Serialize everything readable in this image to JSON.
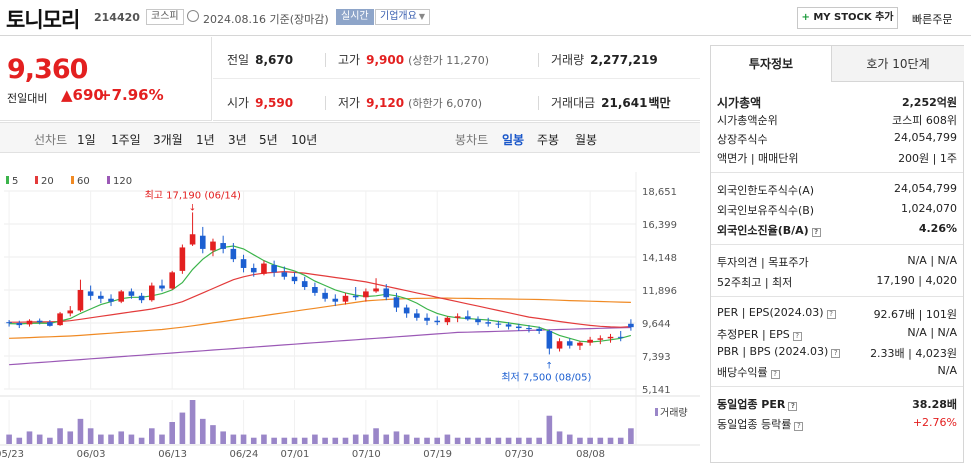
{
  "header": {
    "name": "토니모리",
    "code": "214420",
    "market": "코스피",
    "date": "2024.08.16 기준(장마감)",
    "realtime": "실시간",
    "company_info": "기업개요",
    "mystock_plus": "+",
    "mystock_btn": "MY STOCK 추가",
    "quick_order": "빠른주문"
  },
  "price": {
    "current": "9,360",
    "change_label": "전일대비",
    "change": "▲690",
    "change_pct": "+7.96%"
  },
  "stats": {
    "prev_label": "전일",
    "prev": "8,670",
    "high_label": "고가",
    "high": "9,900",
    "high_sub": "(상한가 11,270)",
    "volume_label": "거래량",
    "volume": "2,277,219",
    "open_label": "시가",
    "open": "9,590",
    "low_label": "저가",
    "low": "9,120",
    "low_sub": "(하한가 6,070)",
    "amount_label": "거래대금",
    "amount": "21,641",
    "amount_unit": "백만"
  },
  "chart_tabs": {
    "line": "선차트",
    "periods": [
      "1일",
      "1주일",
      "3개월",
      "1년",
      "3년",
      "5년",
      "10년"
    ],
    "candle": "봉차트",
    "candles": [
      "일봉",
      "주봉",
      "월봉"
    ],
    "active": "일봉"
  },
  "chart_data": {
    "type": "candlestick",
    "legend": [
      {
        "name": "5",
        "color": "#3cb44b"
      },
      {
        "name": "20",
        "color": "#e33b3b"
      },
      {
        "name": "60",
        "color": "#f08a24"
      },
      {
        "name": "120",
        "color": "#9b59b6"
      }
    ],
    "yticks": [
      "18,651",
      "16,399",
      "14,148",
      "11,896",
      "9,644",
      "7,393",
      "5,141"
    ],
    "ylim": [
      5141,
      18651
    ],
    "xticks": [
      "05/23",
      "06/03",
      "06/13",
      "06/24",
      "07/01",
      "07/10",
      "07/19",
      "07/30",
      "08/08"
    ],
    "annot_high": "최고 17,190 (06/14)",
    "annot_low": "최저 7,500 (08/05)",
    "volume_label": "거래량",
    "candles": [
      [
        9700,
        9850,
        9400,
        9650
      ],
      [
        9650,
        9800,
        9300,
        9500
      ],
      [
        9550,
        9900,
        9400,
        9800
      ],
      [
        9800,
        9950,
        9550,
        9700
      ],
      [
        9700,
        9850,
        9400,
        9450
      ],
      [
        9500,
        10400,
        9450,
        10300
      ],
      [
        10300,
        10800,
        10100,
        10500
      ],
      [
        10500,
        12600,
        10400,
        11900
      ],
      [
        11800,
        12200,
        11200,
        11500
      ],
      [
        11500,
        11800,
        11000,
        11300
      ],
      [
        11300,
        11600,
        10800,
        11100
      ],
      [
        11100,
        11900,
        11000,
        11800
      ],
      [
        11800,
        12000,
        11300,
        11500
      ],
      [
        11500,
        11700,
        11000,
        11200
      ],
      [
        11200,
        12400,
        11100,
        12200
      ],
      [
        12200,
        12600,
        11800,
        12000
      ],
      [
        12000,
        13200,
        11900,
        13100
      ],
      [
        13200,
        15000,
        13000,
        14800
      ],
      [
        15000,
        17190,
        14900,
        15700
      ],
      [
        15600,
        16200,
        14400,
        14700
      ],
      [
        14600,
        15400,
        14200,
        15200
      ],
      [
        15100,
        15600,
        14400,
        14700
      ],
      [
        14700,
        15100,
        13800,
        14000
      ],
      [
        14000,
        14300,
        13100,
        13400
      ],
      [
        13400,
        13700,
        12800,
        13100
      ],
      [
        13000,
        13900,
        12900,
        13700
      ],
      [
        13600,
        13900,
        12800,
        13100
      ],
      [
        13100,
        13500,
        12600,
        12800
      ],
      [
        12800,
        13100,
        12300,
        12500
      ],
      [
        12500,
        12800,
        11900,
        12100
      ],
      [
        12100,
        12400,
        11500,
        11700
      ],
      [
        11700,
        12000,
        11100,
        11300
      ],
      [
        11300,
        11600,
        10800,
        11100
      ],
      [
        11100,
        11700,
        10900,
        11500
      ],
      [
        11500,
        12100,
        11200,
        11400
      ],
      [
        11400,
        12000,
        11100,
        11800
      ],
      [
        11800,
        12700,
        11700,
        12000
      ],
      [
        12000,
        12300,
        11200,
        11400
      ],
      [
        11400,
        11700,
        10400,
        10700
      ],
      [
        10700,
        10900,
        10000,
        10300
      ],
      [
        10300,
        10600,
        9800,
        10000
      ],
      [
        10000,
        10300,
        9500,
        9800
      ],
      [
        9800,
        10100,
        9500,
        9700
      ],
      [
        9700,
        10100,
        9500,
        10000
      ],
      [
        10000,
        10300,
        9700,
        10100
      ],
      [
        10100,
        10500,
        9800,
        9900
      ],
      [
        9900,
        10100,
        9500,
        9700
      ],
      [
        9700,
        10000,
        9400,
        9600
      ],
      [
        9600,
        9800,
        9300,
        9550
      ],
      [
        9550,
        9700,
        9200,
        9400
      ],
      [
        9400,
        9600,
        9100,
        9300
      ],
      [
        9300,
        9500,
        9000,
        9250
      ],
      [
        9250,
        9400,
        8900,
        9100
      ],
      [
        9100,
        9200,
        7500,
        7900
      ],
      [
        7900,
        8600,
        7700,
        8400
      ],
      [
        8400,
        8600,
        7900,
        8100
      ],
      [
        8100,
        8400,
        7800,
        8300
      ],
      [
        8300,
        8700,
        8100,
        8500
      ],
      [
        8500,
        8800,
        8200,
        8600
      ],
      [
        8600,
        8900,
        8300,
        8700
      ],
      [
        8700,
        9100,
        8400,
        8670
      ],
      [
        9590,
        9900,
        9120,
        9360
      ]
    ],
    "volume": [
      3,
      2,
      4,
      3,
      2,
      5,
      4,
      8,
      5,
      3,
      3,
      4,
      3,
      2,
      5,
      3,
      7,
      10,
      14,
      8,
      6,
      4,
      3,
      3,
      2,
      3,
      2,
      2,
      2,
      2,
      3,
      2,
      2,
      2,
      3,
      3,
      5,
      3,
      4,
      3,
      2,
      2,
      2,
      3,
      2,
      2,
      2,
      2,
      2,
      2,
      2,
      2,
      2,
      9,
      4,
      3,
      2,
      2,
      2,
      2,
      2,
      5
    ],
    "ma5": [
      9600,
      9580,
      9620,
      9640,
      9620,
      9780,
      9950,
      10300,
      10600,
      10900,
      11100,
      11300,
      11400,
      11400,
      11500,
      11650,
      11900,
      12400,
      13300,
      14000,
      14500,
      14800,
      14900,
      14700,
      14300,
      13900,
      13600,
      13400,
      13200,
      12900,
      12500,
      12200,
      11900,
      11700,
      11550,
      11450,
      11500,
      11600,
      11500,
      11300,
      11000,
      10600,
      10300,
      10100,
      10000,
      9950,
      9900,
      9850,
      9750,
      9650,
      9550,
      9450,
      9350,
      9100,
      8800,
      8600,
      8400,
      8350,
      8400,
      8500,
      8600,
      8800
    ],
    "ma20": [
      9700,
      9700,
      9710,
      9720,
      9720,
      9750,
      9800,
      9900,
      10000,
      10100,
      10200,
      10300,
      10400,
      10500,
      10600,
      10750,
      10900,
      11100,
      11400,
      11700,
      12000,
      12300,
      12600,
      12800,
      12950,
      13050,
      13100,
      13150,
      13100,
      13050,
      12950,
      12850,
      12750,
      12650,
      12550,
      12450,
      12300,
      12150,
      12000,
      11850,
      11700,
      11550,
      11400,
      11250,
      11100,
      10950,
      10800,
      10650,
      10500,
      10350,
      10200,
      10050,
      9950,
      9850,
      9750,
      9650,
      9560,
      9480,
      9420,
      9380,
      9360,
      9400
    ],
    "ma60": [
      8600,
      8620,
      8650,
      8680,
      8700,
      8730,
      8760,
      8800,
      8850,
      8900,
      8950,
      9000,
      9050,
      9100,
      9150,
      9200,
      9280,
      9360,
      9450,
      9550,
      9650,
      9750,
      9850,
      9950,
      10050,
      10150,
      10250,
      10350,
      10450,
      10550,
      10650,
      10750,
      10850,
      10950,
      11050,
      11150,
      11200,
      11250,
      11280,
      11300,
      11320,
      11330,
      11340,
      11340,
      11330,
      11320,
      11310,
      11300,
      11290,
      11280,
      11270,
      11260,
      11250,
      11230,
      11200,
      11170,
      11150,
      11130,
      11110,
      11090,
      11070,
      11050
    ],
    "ma120": [
      6800,
      6850,
      6900,
      6950,
      7000,
      7050,
      7100,
      7150,
      7200,
      7250,
      7300,
      7350,
      7400,
      7450,
      7500,
      7550,
      7600,
      7650,
      7700,
      7750,
      7800,
      7850,
      7900,
      7950,
      8000,
      8050,
      8100,
      8150,
      8200,
      8250,
      8300,
      8350,
      8400,
      8450,
      8500,
      8550,
      8600,
      8650,
      8700,
      8750,
      8800,
      8850,
      8900,
      8950,
      9000,
      9020,
      9040,
      9060,
      9080,
      9100,
      9120,
      9140,
      9160,
      9180,
      9200,
      9220,
      9240,
      9260,
      9280,
      9300,
      9320,
      9340
    ]
  },
  "right_panel": {
    "tab_invest": "투자정보",
    "tab_orderbook": "호가 10단계",
    "market_cap_label": "시가총액",
    "market_cap": "2,252억원",
    "cap_rank_label": "시가총액순위",
    "cap_rank": "코스피 608위",
    "shares_label": "상장주식수",
    "shares": "24,054,799",
    "par_label": "액면가 | 매매단위",
    "par": "200원 | 1주",
    "foreign_limit_label": "외국인한도주식수(A)",
    "foreign_limit": "24,054,799",
    "foreign_hold_label": "외국인보유주식수(B)",
    "foreign_hold": "1,024,070",
    "foreign_ratio_label": "외국인소진율(B/A)",
    "foreign_ratio": "4.26%",
    "opinion_label": "투자의견 | 목표주가",
    "opinion": "N/A | N/A",
    "w52_label": "52주최고 | 최저",
    "w52": "17,190 | 4,020",
    "per_label": "PER | EPS(2024.03)",
    "per": "92.67배 | 101원",
    "est_per_label": "추정PER | EPS",
    "est_per": "N/A | N/A",
    "pbr_label": "PBR | BPS (2024.03)",
    "pbr": "2.33배 | 4,023원",
    "div_label": "배당수익률",
    "div": "N/A",
    "ind_per_label": "동일업종 PER",
    "ind_per": "38.28배",
    "ind_rate_label": "동일업종 등락률",
    "ind_rate": "+2.76%"
  }
}
